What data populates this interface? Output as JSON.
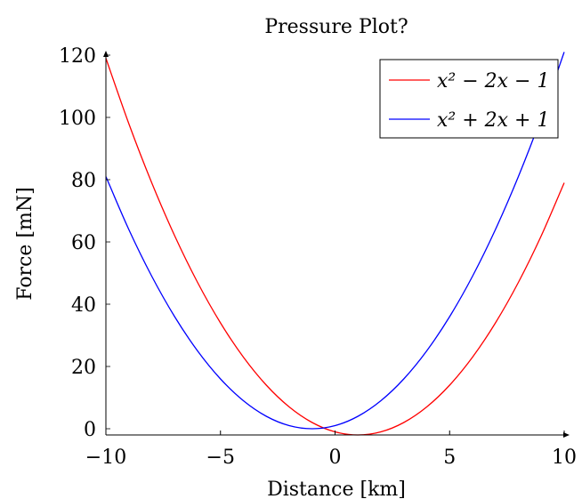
{
  "chart_data": {
    "type": "line",
    "title": "Pressure Plot?",
    "xlabel": "Distance [km]",
    "ylabel": "Force [mN]",
    "xlim": [
      -10,
      10
    ],
    "ylim": [
      -2,
      120
    ],
    "xticks": [
      -10,
      -5,
      0,
      5,
      10
    ],
    "xtick_labels": [
      "−10",
      "−5",
      "0",
      "5",
      "10"
    ],
    "yticks": [
      0,
      20,
      40,
      60,
      80,
      100,
      120
    ],
    "ytick_labels": [
      "0",
      "20",
      "40",
      "60",
      "80",
      "100",
      "120"
    ],
    "grid": false,
    "legend_position": "top-right",
    "series": [
      {
        "name": "x² − 2x − 1",
        "color": "#ff0000",
        "x": [
          -10,
          -9,
          -8,
          -7,
          -6,
          -5,
          -4,
          -3,
          -2,
          -1,
          0,
          1,
          2,
          3,
          4,
          5,
          6,
          7,
          8,
          9,
          10
        ],
        "y": [
          119,
          98,
          79,
          62,
          47,
          34,
          23,
          14,
          7,
          2,
          -1,
          -2,
          -1,
          2,
          7,
          14,
          23,
          34,
          47,
          62,
          79
        ]
      },
      {
        "name": "x² + 2x + 1",
        "color": "#0000ff",
        "x": [
          -10,
          -9,
          -8,
          -7,
          -6,
          -5,
          -4,
          -3,
          -2,
          -1,
          0,
          1,
          2,
          3,
          4,
          5,
          6,
          7,
          8,
          9,
          10
        ],
        "y": [
          81,
          64,
          49,
          36,
          25,
          16,
          9,
          4,
          1,
          0,
          1,
          4,
          9,
          16,
          25,
          36,
          49,
          64,
          81,
          100,
          121
        ]
      }
    ]
  }
}
